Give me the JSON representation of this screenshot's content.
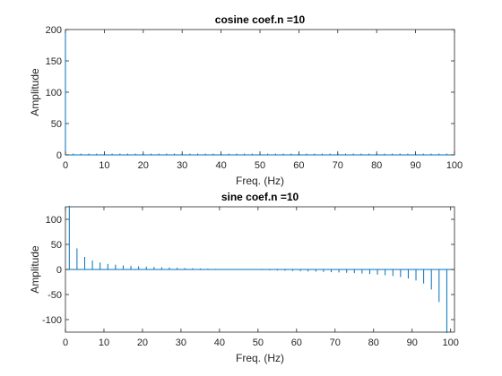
{
  "chart_data": [
    {
      "type": "stem",
      "title": "cosine coef.n =10",
      "xlabel": "Freq. (Hz)",
      "ylabel": "Amplitude",
      "xlim": [
        0,
        100
      ],
      "ylim": [
        0,
        200
      ],
      "xticks": [
        0,
        10,
        20,
        30,
        40,
        50,
        60,
        70,
        80,
        90,
        100
      ],
      "yticks": [
        0,
        50,
        100,
        150,
        200
      ],
      "color": "#0072BD",
      "x": [
        0,
        2,
        4,
        6,
        8,
        10,
        12,
        14,
        16,
        18,
        20,
        22,
        24,
        26,
        28,
        30,
        32,
        34,
        36,
        38,
        40,
        42,
        44,
        46,
        48,
        50,
        52,
        54,
        56,
        58,
        60,
        62,
        64,
        66,
        68,
        70,
        72,
        74,
        76,
        78,
        80,
        82,
        84,
        86,
        88,
        90,
        92,
        94,
        96,
        98,
        100
      ],
      "values": [
        200,
        2,
        2,
        2,
        2,
        2,
        2,
        2,
        2,
        2,
        2,
        2,
        2,
        2,
        2,
        2,
        2,
        2,
        2,
        2,
        2,
        2,
        2,
        2,
        2,
        2,
        2,
        2,
        2,
        2,
        2,
        2,
        2,
        2,
        2,
        2,
        2,
        2,
        2,
        2,
        2,
        2,
        2,
        2,
        2,
        2,
        2,
        2,
        2,
        2,
        2
      ]
    },
    {
      "type": "stem",
      "title": "sine coef.n =10",
      "xlabel": "Freq. (Hz)",
      "ylabel": "Amplitude",
      "xlim": [
        0,
        101
      ],
      "ylim": [
        -125,
        125
      ],
      "xticks": [
        0,
        10,
        20,
        30,
        40,
        50,
        60,
        70,
        80,
        90,
        100
      ],
      "yticks": [
        -100,
        -50,
        0,
        50,
        100
      ],
      "color": "#0072BD",
      "x": [
        1,
        3,
        5,
        7,
        9,
        11,
        13,
        15,
        17,
        19,
        21,
        23,
        25,
        27,
        29,
        31,
        33,
        35,
        37,
        39,
        41,
        43,
        45,
        47,
        49,
        51,
        53,
        55,
        57,
        59,
        61,
        63,
        65,
        67,
        69,
        71,
        73,
        75,
        77,
        79,
        81,
        83,
        85,
        87,
        89,
        91,
        93,
        95,
        97,
        99
      ],
      "values": [
        127,
        42,
        25,
        18,
        14,
        11,
        9.5,
        8.2,
        7.2,
        6.4,
        5.7,
        5.0,
        4.4,
        3.9,
        3.4,
        2.9,
        2.4,
        2.0,
        1.6,
        1.1,
        0.7,
        0.3,
        -0.1,
        -0.5,
        -0.9,
        -1.3,
        -1.7,
        -2.1,
        -2.5,
        -2.9,
        -3.4,
        -3.9,
        -4.3,
        -4.9,
        -5.4,
        -6.0,
        -6.7,
        -7.4,
        -8.2,
        -9.1,
        -10.2,
        -11.5,
        -13.1,
        -15.2,
        -18,
        -22,
        -28,
        -40,
        -65,
        -127
      ]
    }
  ]
}
